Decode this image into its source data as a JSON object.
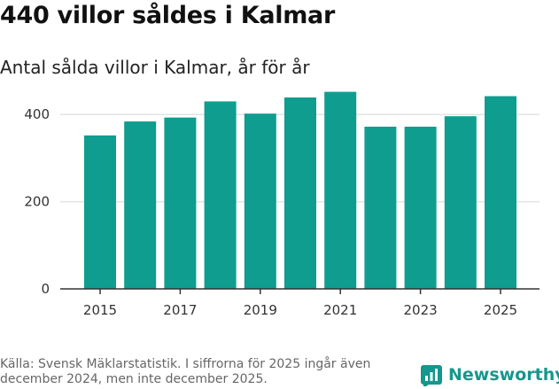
{
  "title": "440 villor såldes i Kalmar",
  "subtitle": "Antal sålda villor i Kalmar, år för år",
  "source": "Källa: Svensk Mäklarstatistik. I siffrorna för 2025 ingår även december 2024, men inte december 2025.",
  "brand": {
    "name": "Newsworthy",
    "icon": "newsworthy-logo-icon"
  },
  "colors": {
    "bar": "#0f9d8f",
    "grid": "#e3e3e3",
    "axis": "#333333",
    "brand": "#16978d"
  },
  "chart_data": {
    "type": "bar",
    "title": "440 villor såldes i Kalmar",
    "subtitle": "Antal sålda villor i Kalmar, år för år",
    "categories": [
      "2015",
      "2016",
      "2017",
      "2018",
      "2019",
      "2020",
      "2021",
      "2022",
      "2023",
      "2024",
      "2025"
    ],
    "values": [
      352,
      384,
      393,
      430,
      402,
      439,
      452,
      372,
      372,
      396,
      442
    ],
    "x_tick_labels": [
      "2015",
      "2017",
      "2019",
      "2021",
      "2023",
      "2025"
    ],
    "y_ticks": [
      0,
      200,
      400
    ],
    "ylim": [
      0,
      500
    ],
    "xlabel": "",
    "ylabel": "",
    "grid": true
  }
}
